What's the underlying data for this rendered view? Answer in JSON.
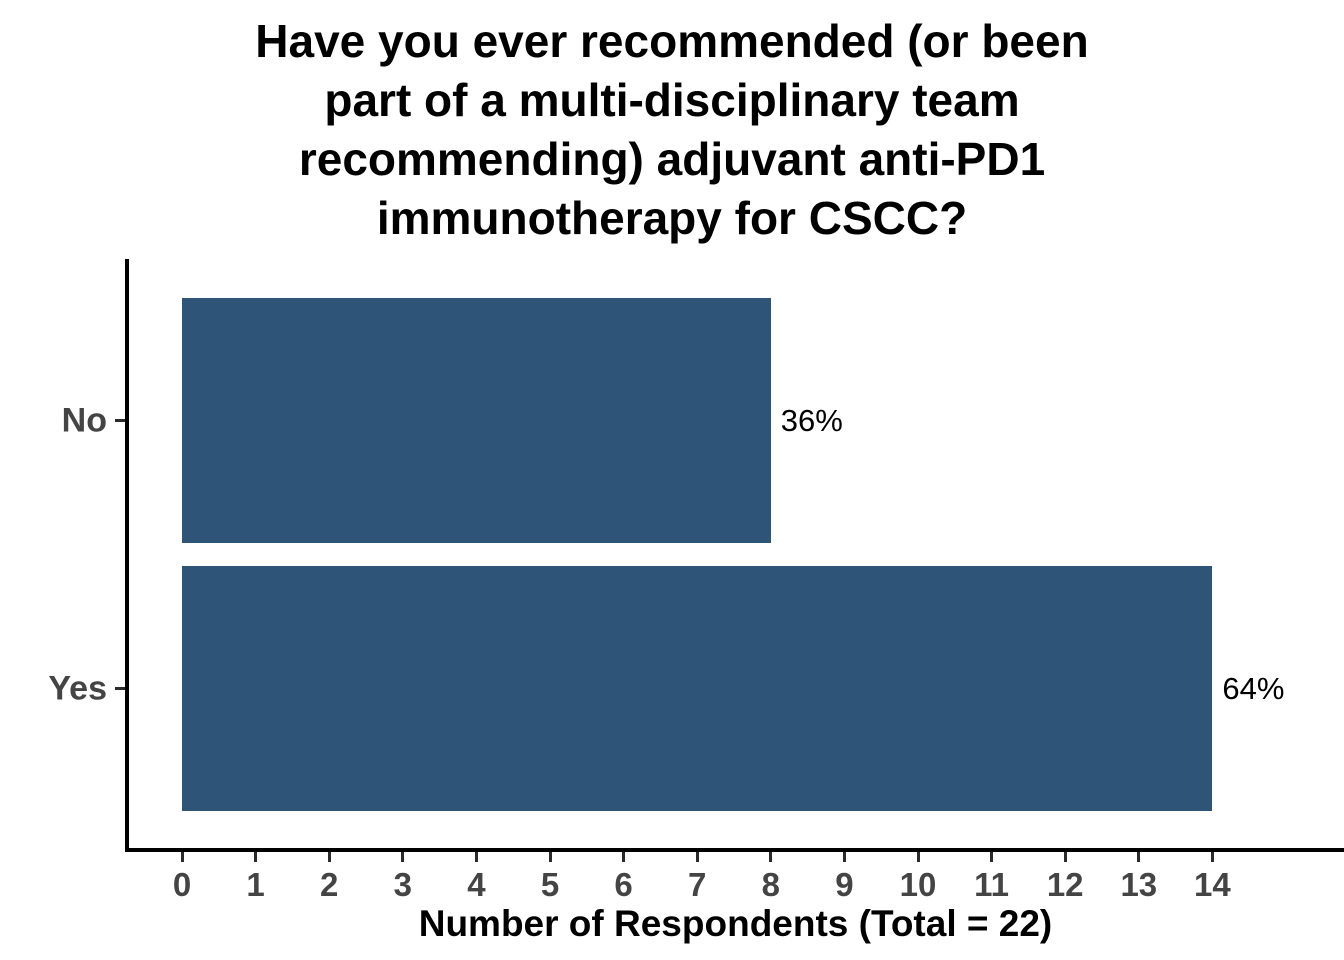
{
  "chart_data": {
    "type": "bar",
    "orientation": "horizontal",
    "title": "Have you ever recommended (or been part of a multi-disciplinary team recommending) adjuvant anti-PD1 immunotherapy for CSCC?",
    "title_lines": [
      "Have you ever recommended (or been",
      "part of a multi-disciplinary team",
      "recommending) adjuvant anti-PD1",
      "immunotherapy for CSCC?"
    ],
    "categories": [
      "No",
      "Yes"
    ],
    "values": [
      8,
      14
    ],
    "bar_labels": [
      "36%",
      "64%"
    ],
    "total_respondents": 22,
    "xlabel": "Number of Respondents (Total = 22)",
    "ylabel": "",
    "xlim": [
      0,
      14
    ],
    "x_ticks": [
      0,
      1,
      2,
      3,
      4,
      5,
      6,
      7,
      8,
      9,
      10,
      11,
      12,
      13,
      14
    ],
    "grid": false,
    "legend": false,
    "colors": {
      "bar": "#2E5477",
      "axis": "#000000",
      "category_text": "#444444",
      "tick_text": "#444444",
      "value_label_text": "#000000",
      "background": "#ffffff"
    }
  }
}
